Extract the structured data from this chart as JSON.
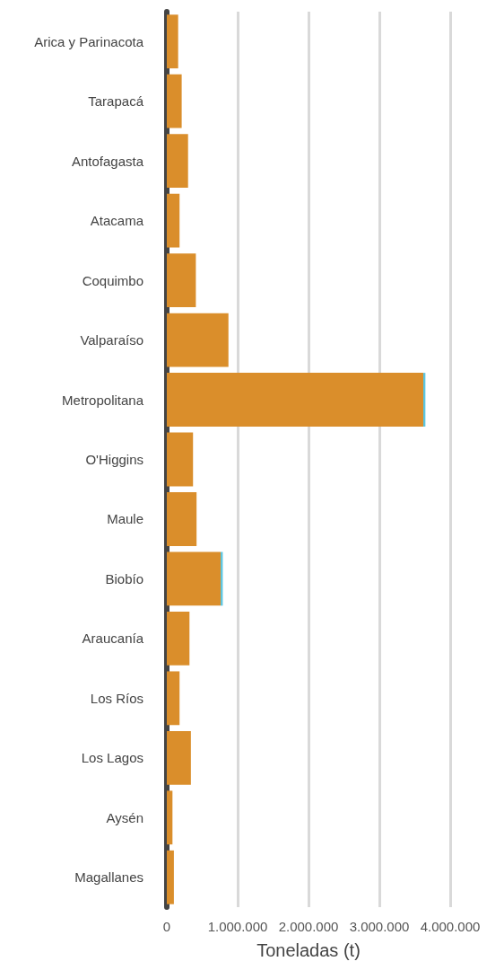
{
  "chart_data": {
    "type": "bar",
    "orientation": "horizontal",
    "stacked": true,
    "xlabel": "Toneladas (t)",
    "categories": [
      "Arica y Parinacota",
      "Tarapacá",
      "Antofagasta",
      "Atacama",
      "Coquimbo",
      "Valparaíso",
      "Metropolitana",
      "O'Higgins",
      "Maule",
      "Biobío",
      "Araucanía",
      "Los Ríos",
      "Los Lagos",
      "Aysén",
      "Magallanes"
    ],
    "series": [
      {
        "color": "#da8e2b",
        "values": [
          160000,
          210000,
          300000,
          180000,
          410000,
          870000,
          3620000,
          370000,
          420000,
          760000,
          320000,
          180000,
          340000,
          80000,
          100000
        ]
      },
      {
        "color": "#5bc5e0",
        "values": [
          0,
          0,
          0,
          0,
          0,
          0,
          30000,
          0,
          0,
          30000,
          0,
          0,
          0,
          0,
          0
        ]
      }
    ],
    "xlim": [
      0,
      4000000
    ],
    "xticks": [
      {
        "value": 0,
        "label": "0"
      },
      {
        "value": 1000000,
        "label": "1.000.000"
      },
      {
        "value": 2000000,
        "label": "2.000.000"
      },
      {
        "value": 3000000,
        "label": "3.000.000"
      },
      {
        "value": 4000000,
        "label": "4.000.000"
      }
    ],
    "grid": "x"
  }
}
